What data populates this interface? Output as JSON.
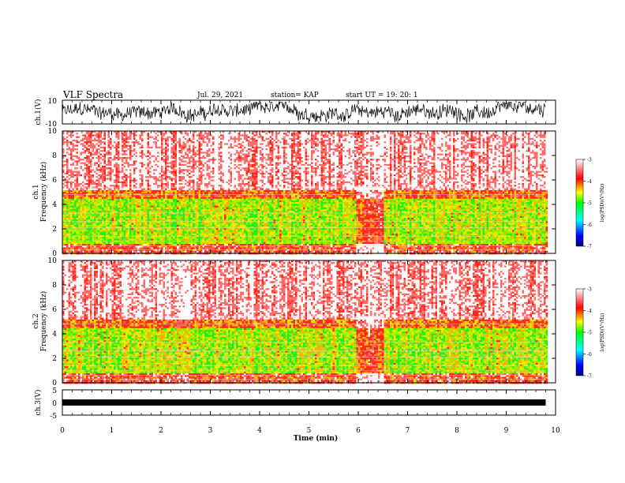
{
  "header": {
    "title": "VLF Spectra",
    "date": "Jul. 29, 2021",
    "station": "station= KAP",
    "start": "start  UT =   19: 20: 1"
  },
  "chart_data": [
    {
      "type": "line",
      "panel": "ch1-waveform",
      "ylabel": "ch.1(V)",
      "ylim": [
        -10,
        10
      ],
      "yticks": [
        "10",
        "-10"
      ],
      "xlim": [
        0,
        10
      ],
      "trace_range_x": [
        0,
        9.8
      ],
      "description_values": "dense oscillating waveform, roughly between -8 and 8 V"
    },
    {
      "type": "heatmap",
      "panel": "ch1-spectrogram",
      "ylabel": "ch.1\nFrequency  (kHz)",
      "ylabel_line1": "ch.1",
      "ylabel_line2": "Frequency  (kHz)",
      "ylim": [
        0,
        10
      ],
      "yticks": [
        "0",
        "2",
        "4",
        "6",
        "8",
        "10"
      ],
      "xlim": [
        0,
        10
      ],
      "data_range_x": [
        0,
        9.8
      ],
      "colorbar": {
        "label": "log(PSD)(V²/Hz)",
        "range": [
          -7,
          -3
        ],
        "ticks": [
          "-3",
          "-4",
          "-5",
          "-6",
          "-7"
        ],
        "colors": [
          "#0000aa",
          "#0000ff",
          "#00ffff",
          "#00ff00",
          "#ffff00",
          "#ff0000",
          "#ffffff"
        ]
      }
    },
    {
      "type": "heatmap",
      "panel": "ch2-spectrogram",
      "ylabel": "ch.2\nFrequency  (kHz)",
      "ylabel_line1": "ch.2",
      "ylabel_line2": "Frequency  (kHz)",
      "ylim": [
        0,
        10
      ],
      "yticks": [
        "0",
        "2",
        "4",
        "6",
        "8",
        "10"
      ],
      "xlim": [
        0,
        10
      ],
      "data_range_x": [
        0,
        9.8
      ],
      "colorbar": {
        "label": "log(PSD)(V²/Hz)",
        "range": [
          -7,
          -3
        ],
        "ticks": [
          "-3",
          "-4",
          "-5",
          "-6",
          "-7"
        ],
        "colors": [
          "#0000aa",
          "#0000ff",
          "#00ffff",
          "#00ff00",
          "#ffff00",
          "#ff0000",
          "#ffffff"
        ]
      }
    },
    {
      "type": "line",
      "panel": "ch3-waveform",
      "ylabel": "ch.3(V)",
      "ylim": [
        -5,
        5
      ],
      "yticks": [
        "5",
        "0",
        "-5"
      ],
      "xlim": [
        0,
        10
      ],
      "trace_range_x": [
        0,
        9.8
      ],
      "trace_level": 0,
      "trace_amplitude": 0.6
    }
  ],
  "xaxis": {
    "label": "Time  (min)",
    "ticks": [
      "0",
      "1",
      "2",
      "3",
      "4",
      "5",
      "6",
      "7",
      "8",
      "9",
      "10"
    ]
  }
}
